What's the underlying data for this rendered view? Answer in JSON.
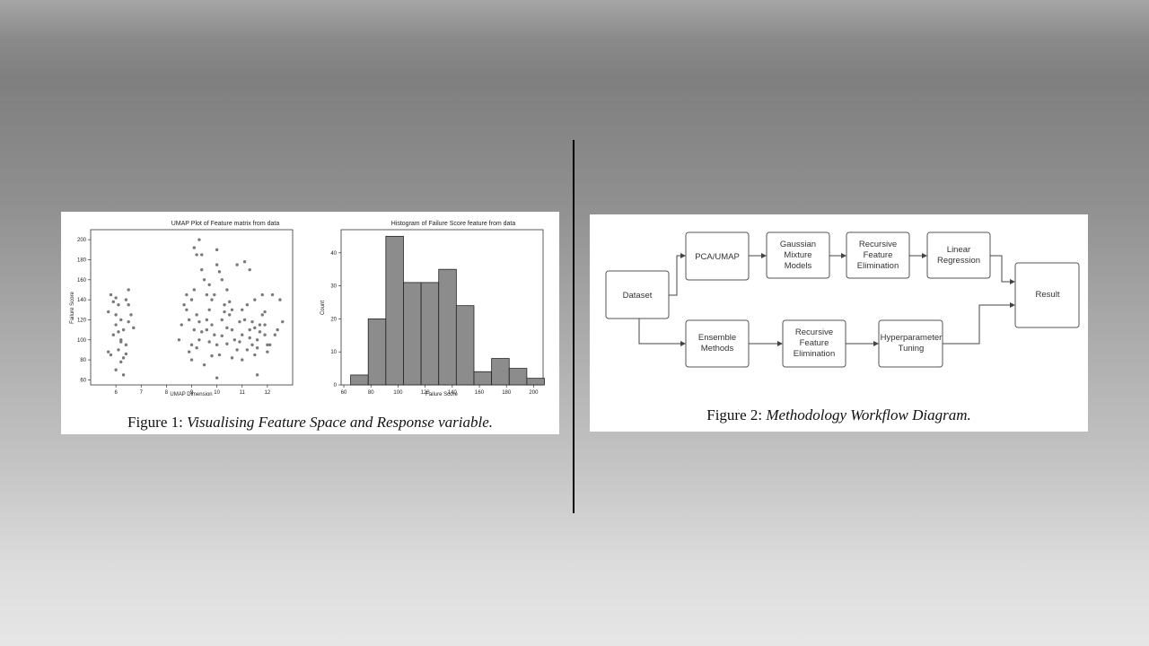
{
  "figure1": {
    "caption_prefix": "Figure 1: ",
    "caption_text": "Visualising Feature Space and Response variable.",
    "scatter": {
      "type": "scatter",
      "title": "UMAP Plot of Feature matrix from data",
      "xlabel": "UMAP Dimension",
      "ylabel": "Failure Score",
      "xlim": [
        5.0,
        13.0
      ],
      "ylim": [
        55,
        210
      ],
      "xticks": [
        6,
        7,
        8,
        9,
        10,
        11,
        12
      ],
      "yticks": [
        60,
        80,
        100,
        120,
        140,
        160,
        180,
        200
      ],
      "color": "#7a7a7a",
      "points": [
        [
          5.8,
          145
        ],
        [
          5.9,
          138
        ],
        [
          6.0,
          142
        ],
        [
          6.1,
          135
        ],
        [
          5.7,
          128
        ],
        [
          6.2,
          120
        ],
        [
          6.0,
          115
        ],
        [
          6.3,
          110
        ],
        [
          5.9,
          105
        ],
        [
          6.2,
          100
        ],
        [
          6.4,
          95
        ],
        [
          6.1,
          90
        ],
        [
          5.8,
          85
        ],
        [
          6.3,
          82
        ],
        [
          6.2,
          78
        ],
        [
          6.0,
          70
        ],
        [
          6.3,
          65
        ],
        [
          6.5,
          150
        ],
        [
          6.4,
          140
        ],
        [
          6.6,
          125
        ],
        [
          6.5,
          118
        ],
        [
          6.7,
          112
        ],
        [
          6.2,
          98
        ],
        [
          5.7,
          88
        ],
        [
          6.4,
          86
        ],
        [
          6.1,
          108
        ],
        [
          6.0,
          125
        ],
        [
          6.5,
          135
        ],
        [
          8.8,
          130
        ],
        [
          8.9,
          120
        ],
        [
          9.0,
          140
        ],
        [
          9.1,
          110
        ],
        [
          9.2,
          125
        ],
        [
          9.3,
          100
        ],
        [
          9.0,
          95
        ],
        [
          8.9,
          88
        ],
        [
          9.1,
          150
        ],
        [
          9.2,
          185
        ],
        [
          9.3,
          200
        ],
        [
          9.4,
          170
        ],
        [
          9.5,
          160
        ],
        [
          9.6,
          145
        ],
        [
          9.7,
          130
        ],
        [
          9.8,
          115
        ],
        [
          9.9,
          105
        ],
        [
          10.0,
          95
        ],
        [
          10.1,
          85
        ],
        [
          10.2,
          120
        ],
        [
          10.3,
          135
        ],
        [
          10.4,
          150
        ],
        [
          10.5,
          125
        ],
        [
          10.6,
          110
        ],
        [
          10.7,
          100
        ],
        [
          10.8,
          90
        ],
        [
          10.0,
          175
        ],
        [
          10.2,
          160
        ],
        [
          9.8,
          140
        ],
        [
          9.6,
          120
        ],
        [
          9.4,
          108
        ],
        [
          9.2,
          92
        ],
        [
          9.0,
          80
        ],
        [
          9.5,
          75
        ],
        [
          10.0,
          62
        ],
        [
          10.5,
          138
        ],
        [
          10.3,
          128
        ],
        [
          9.9,
          145
        ],
        [
          9.7,
          155
        ],
        [
          10.1,
          168
        ],
        [
          8.6,
          115
        ],
        [
          8.5,
          100
        ],
        [
          8.7,
          135
        ],
        [
          8.8,
          145
        ],
        [
          9.3,
          118
        ],
        [
          9.7,
          98
        ],
        [
          10.4,
          112
        ],
        [
          10.6,
          130
        ],
        [
          10.9,
          118
        ],
        [
          11.0,
          105
        ],
        [
          11.1,
          120
        ],
        [
          11.2,
          135
        ],
        [
          11.3,
          110
        ],
        [
          11.4,
          95
        ],
        [
          11.5,
          85
        ],
        [
          11.6,
          100
        ],
        [
          11.7,
          115
        ],
        [
          11.8,
          125
        ],
        [
          11.9,
          105
        ],
        [
          12.0,
          95
        ],
        [
          11.5,
          140
        ],
        [
          11.8,
          145
        ],
        [
          11.2,
          90
        ],
        [
          11.0,
          80
        ],
        [
          11.6,
          65
        ],
        [
          12.0,
          88
        ],
        [
          11.7,
          108
        ],
        [
          11.4,
          118
        ],
        [
          11.1,
          178
        ],
        [
          11.3,
          170
        ],
        [
          11.9,
          128
        ],
        [
          12.2,
          145
        ],
        [
          12.5,
          140
        ],
        [
          12.6,
          118
        ],
        [
          12.4,
          110
        ],
        [
          12.3,
          105
        ],
        [
          12.1,
          95
        ],
        [
          11.5,
          112
        ],
        [
          11.0,
          130
        ],
        [
          10.9,
          98
        ],
        [
          11.6,
          92
        ],
        [
          11.3,
          102
        ],
        [
          9.1,
          192
        ],
        [
          9.4,
          185
        ],
        [
          10.0,
          190
        ],
        [
          10.8,
          175
        ],
        [
          9.8,
          84
        ],
        [
          10.6,
          82
        ],
        [
          11.9,
          115
        ],
        [
          10.2,
          104
        ],
        [
          9.6,
          110
        ],
        [
          10.4,
          96
        ]
      ]
    },
    "histogram": {
      "type": "bar",
      "title": "Histogram of Failure Score feature from data",
      "xlabel": "Failure Score",
      "ylabel": "Count",
      "xlim": [
        58,
        207
      ],
      "ylim": [
        0,
        47
      ],
      "xticks": [
        60,
        80,
        100,
        120,
        140,
        160,
        180,
        200
      ],
      "yticks": [
        0,
        10,
        20,
        30,
        40
      ],
      "bin_edges": [
        65,
        78,
        91,
        104,
        117,
        130,
        143,
        156,
        169,
        182,
        195,
        208
      ],
      "values": [
        3,
        20,
        45,
        31,
        31,
        35,
        24,
        4,
        8,
        5,
        2
      ],
      "color": "#8c8c8c"
    }
  },
  "figure2": {
    "caption_prefix": "Figure 2: ",
    "caption_text": "Methodology Workflow Diagram.",
    "nodes": {
      "dataset": "Dataset",
      "pca": "PCA/UMAP",
      "gaussian": [
        "Gaussian",
        "Mixture",
        "Models"
      ],
      "rfe_top": [
        "Recursive",
        "Feature",
        "Elimination"
      ],
      "linear": [
        "Linear",
        "Regression"
      ],
      "result": "Result",
      "ensemble": [
        "Ensemble",
        "Methods"
      ],
      "rfe_bottom": [
        "Recursive",
        "Feature",
        "Elimination"
      ],
      "hyper": [
        "Hyperparameter",
        "Tuning"
      ]
    }
  }
}
